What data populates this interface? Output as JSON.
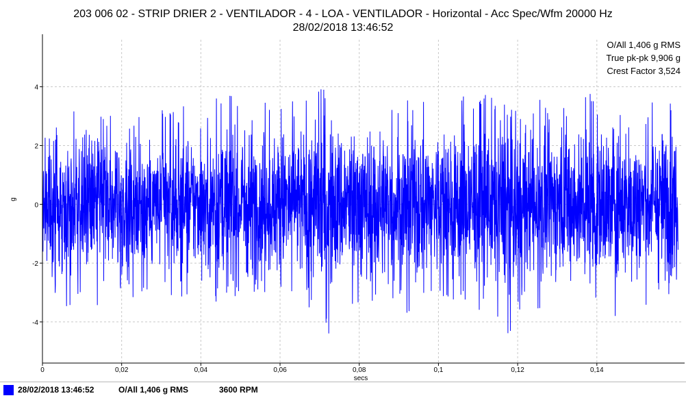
{
  "header": {
    "title_line1": "203 006 02 - STRIP DRIER 2 - VENTILADOR - 4 - LOA - VENTILADOR - Horizontal - Acc Spec/Wfm 20000 Hz",
    "title_line2": "28/02/2018 13:46:52"
  },
  "stats": {
    "overall": "O/All 1,406 g RMS",
    "peak_to_peak": "True pk-pk 9,906 g",
    "crest_factor": "Crest Factor 3,524"
  },
  "footer": {
    "date": "28/02/2018 13:46:52",
    "overall": "O/All 1,406 g RMS",
    "rpm": "3600 RPM"
  },
  "colors": {
    "waveform": "#0000ff",
    "grid": "#c8c8c8",
    "axis": "#000000"
  },
  "chart_data": {
    "type": "line",
    "title": "203 006 02 - STRIP DRIER 2 - VENTILADOR - 4 - LOA - VENTILADOR - Horizontal - Acc Spec/Wfm 20000 Hz",
    "subtitle": "28/02/2018 13:46:52",
    "xlabel": "secs",
    "ylabel": "g",
    "xlim": [
      0,
      0.1613
    ],
    "ylim": [
      -5.4,
      5.6
    ],
    "x_ticks": [
      0,
      0.02,
      0.04,
      0.06,
      0.08,
      0.1,
      0.12,
      0.14
    ],
    "x_tick_labels": [
      "0",
      "0,02",
      "0,04",
      "0,06",
      "0,08",
      "0,1",
      "0,12",
      "0,14"
    ],
    "y_ticks": [
      -4,
      -2,
      0,
      2,
      4
    ],
    "y_tick_labels": [
      "-4",
      "-2",
      "0",
      "2",
      "4"
    ],
    "grid": true,
    "series": [
      {
        "name": "28/02/2018 13:46:52",
        "color": "#0000ff",
        "x": [
          0,
          0.002,
          0.004,
          0.0063,
          0.0084,
          0.0105,
          0.0125,
          0.0145,
          0.017,
          0.0195,
          0.022,
          0.0245,
          0.027,
          0.03,
          0.033,
          0.035,
          0.0375,
          0.04,
          0.0425,
          0.045,
          0.0475,
          0.05,
          0.052,
          0.0545,
          0.057,
          0.0595,
          0.0615,
          0.064,
          0.066,
          0.0685,
          0.07,
          0.0725,
          0.0745,
          0.077,
          0.0795,
          0.082,
          0.0845,
          0.087,
          0.0895,
          0.092,
          0.0945,
          0.097,
          0.0995,
          0.102,
          0.1045,
          0.1065,
          0.109,
          0.1115,
          0.114,
          0.116,
          0.1185,
          0.121,
          0.123,
          0.1255,
          0.128,
          0.13,
          0.1325,
          0.135,
          0.137,
          0.1395,
          0.142,
          0.1445,
          0.147,
          0.1495,
          0.152,
          0.1545,
          0.157,
          0.159,
          0.1605
        ],
        "max": [
          2.5,
          3.6,
          3.4,
          3.2,
          3.5,
          3.6,
          2.8,
          3.9,
          3.1,
          3.3,
          2.8,
          3.4,
          3.7,
          3.4,
          3.2,
          3.3,
          3.5,
          2.7,
          3.5,
          3.7,
          4.3,
          3.3,
          4.2,
          3.9,
          3.5,
          3.3,
          4.0,
          3.3,
          3.8,
          4.1,
          4.3,
          3.6,
          4.0,
          3.8,
          3.7,
          3.8,
          3.9,
          3.4,
          3.2,
          3.7,
          4.2,
          3.3,
          3.5,
          4.6,
          3.0,
          4.2,
          3.8,
          3.9,
          3.6,
          3.5,
          3.3,
          3.9,
          3.0,
          3.6,
          3.3,
          3.7,
          3.4,
          3.9,
          4.1,
          3.8,
          3.3,
          3.4,
          3.6,
          4.2,
          3.7,
          3.7,
          3.9,
          4.0,
          3.6
        ],
        "min": [
          -2.3,
          -3.3,
          -3.1,
          -3.8,
          -3.4,
          -2.8,
          -3.3,
          -4.0,
          -3.2,
          -2.9,
          -3.1,
          -3.4,
          -3.0,
          -2.8,
          -3.5,
          -4.1,
          -3.0,
          -3.0,
          -3.5,
          -3.3,
          -3.1,
          -3.2,
          -3.6,
          -3.2,
          -3.0,
          -3.3,
          -3.1,
          -2.9,
          -4.1,
          -3.4,
          -3.4,
          -4.8,
          -3.2,
          -3.4,
          -3.7,
          -3.4,
          -3.2,
          -3.7,
          -3.3,
          -3.8,
          -3.5,
          -3.3,
          -3.6,
          -3.1,
          -3.5,
          -4.1,
          -3.5,
          -3.7,
          -3.4,
          -4.4,
          -4.6,
          -3.5,
          -3.8,
          -4.0,
          -3.2,
          -3.4,
          -3.6,
          -3.0,
          -3.4,
          -3.2,
          -3.8,
          -3.9,
          -3.4,
          -3.5,
          -3.6,
          -3.0,
          -3.2,
          -3.8,
          -2.7
        ]
      }
    ]
  }
}
